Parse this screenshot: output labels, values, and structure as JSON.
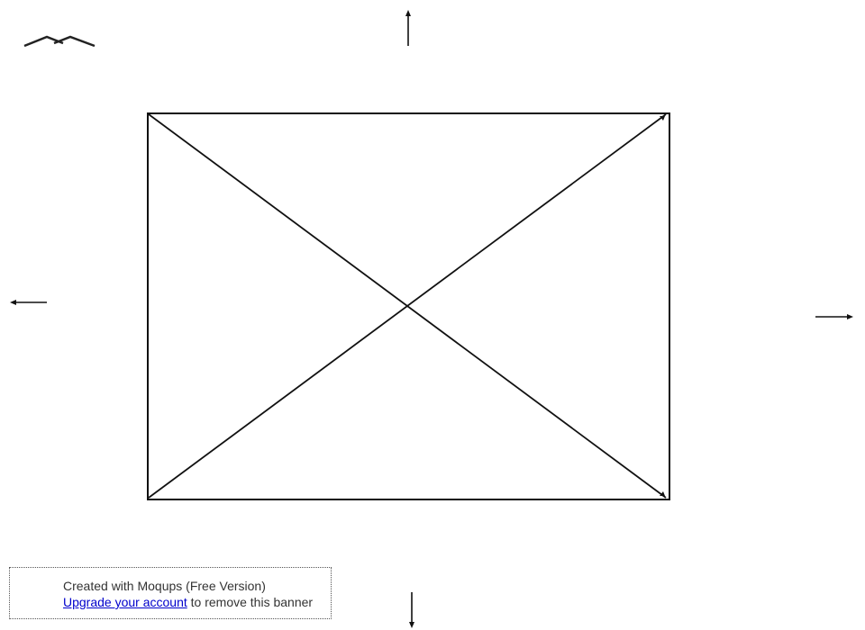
{
  "wireframe": {
    "logo_icon": "zigzag-logo-icon",
    "placeholder_icon": "image-placeholder-icon",
    "arrows": {
      "up": "arrow-up-icon",
      "down": "arrow-down-icon",
      "left": "arrow-left-icon",
      "right": "arrow-right-icon"
    },
    "stroke_color": "#111111"
  },
  "banner": {
    "created_text": "Created with Moqups (Free Version)",
    "upgrade_link": "Upgrade your account",
    "remove_text": " to remove this banner",
    "link_color": "#0000cc"
  }
}
